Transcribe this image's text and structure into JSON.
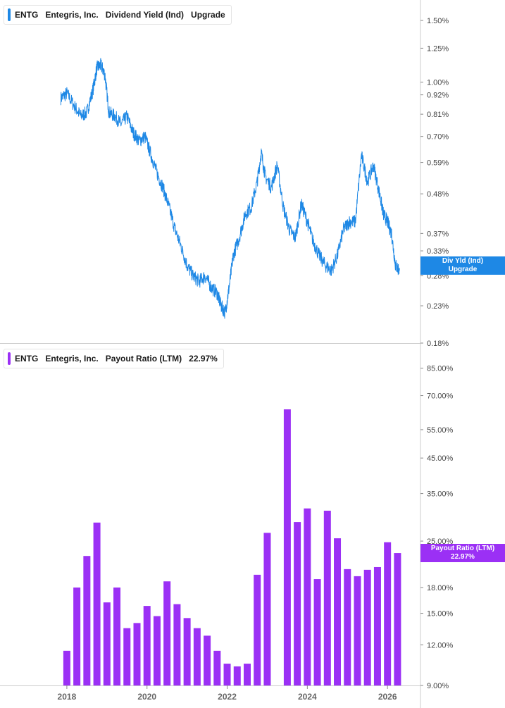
{
  "colors": {
    "yield": "#1e88e5",
    "payout": "#9b30f5",
    "axis_text": "#444444",
    "grid": "#cccccc"
  },
  "top_legend": {
    "ticker": "ENTG",
    "company": "Entegris, Inc.",
    "metric": "Dividend Yield (Ind)",
    "value": "Upgrade"
  },
  "bottom_legend": {
    "ticker": "ENTG",
    "company": "Entegris, Inc.",
    "metric": "Payout Ratio (LTM)",
    "value": "22.97%"
  },
  "top_tag": {
    "line1": "Div Yld (Ind)",
    "line2": "Upgrade"
  },
  "bottom_tag": {
    "line1": "Payout Ratio (LTM)",
    "line2": "22.97%"
  },
  "chart_data": [
    {
      "type": "line",
      "series": [
        {
          "name": "Dividend Yield (Ind)"
        }
      ],
      "y_scale": "log",
      "ylim": [
        0.18,
        1.7
      ],
      "y_ticks": [
        "1.50%",
        "1.25%",
        "1.00%",
        "0.92%",
        "0.81%",
        "0.70%",
        "0.59%",
        "0.48%",
        "0.37%",
        "0.33%",
        "0.28%",
        "0.23%",
        "0.18%"
      ],
      "x": [
        2017.85,
        2018.0,
        2018.2,
        2018.35,
        2018.5,
        2018.65,
        2018.75,
        2018.85,
        2018.95,
        2019.05,
        2019.2,
        2019.35,
        2019.5,
        2019.65,
        2019.8,
        2019.95,
        2020.1,
        2020.25,
        2020.4,
        2020.55,
        2020.7,
        2020.85,
        2021.0,
        2021.15,
        2021.3,
        2021.45,
        2021.6,
        2021.75,
        2021.85,
        2021.95,
        2022.05,
        2022.15,
        2022.3,
        2022.45,
        2022.6,
        2022.75,
        2022.85,
        2022.95,
        2023.1,
        2023.25,
        2023.4,
        2023.55,
        2023.7,
        2023.85,
        2024.0,
        2024.15,
        2024.3,
        2024.45,
        2024.6,
        2024.75,
        2024.9,
        2025.05,
        2025.2,
        2025.35,
        2025.5,
        2025.65,
        2025.8,
        2025.9,
        2026.0,
        2026.1,
        2026.2,
        2026.3
      ],
      "y": [
        0.9,
        0.93,
        0.85,
        0.8,
        0.82,
        0.95,
        1.1,
        1.12,
        1.05,
        0.82,
        0.8,
        0.76,
        0.8,
        0.72,
        0.68,
        0.7,
        0.62,
        0.55,
        0.5,
        0.44,
        0.38,
        0.34,
        0.3,
        0.28,
        0.27,
        0.28,
        0.26,
        0.25,
        0.23,
        0.22,
        0.26,
        0.32,
        0.36,
        0.42,
        0.44,
        0.52,
        0.63,
        0.54,
        0.5,
        0.58,
        0.44,
        0.38,
        0.36,
        0.45,
        0.4,
        0.35,
        0.32,
        0.3,
        0.29,
        0.32,
        0.38,
        0.4,
        0.4,
        0.62,
        0.52,
        0.58,
        0.48,
        0.42,
        0.4,
        0.37,
        0.3,
        0.29
      ]
    },
    {
      "type": "bar",
      "series": [
        {
          "name": "Payout Ratio (LTM)"
        }
      ],
      "y_scale": "log",
      "ylim": [
        9.0,
        100.0
      ],
      "y_ticks": [
        "85.00%",
        "70.00%",
        "55.00%",
        "45.00%",
        "35.00%",
        "25.00%",
        "18.00%",
        "15.00%",
        "12.00%",
        "9.00%"
      ],
      "x_ticks": [
        "2018",
        "2020",
        "2022",
        "2024",
        "2026"
      ],
      "x": [
        2018.0,
        2018.25,
        2018.5,
        2018.75,
        2019.0,
        2019.25,
        2019.5,
        2019.75,
        2020.0,
        2020.25,
        2020.5,
        2020.75,
        2021.0,
        2021.25,
        2021.5,
        2021.75,
        2022.0,
        2022.25,
        2022.5,
        2022.75,
        2023.0,
        2023.5,
        2023.75,
        2024.0,
        2024.25,
        2024.5,
        2024.75,
        2025.0,
        2025.25,
        2025.5,
        2025.75,
        2026.0,
        2026.25
      ],
      "values": [
        11.5,
        18.0,
        22.5,
        28.5,
        16.2,
        18.0,
        13.5,
        14.0,
        15.8,
        14.7,
        18.8,
        16.0,
        14.5,
        13.5,
        12.8,
        11.5,
        10.5,
        10.3,
        10.5,
        19.7,
        26.5,
        63.5,
        28.6,
        31.5,
        19.1,
        31.0,
        25.5,
        20.5,
        19.5,
        20.4,
        20.8,
        24.8,
        22.97
      ]
    }
  ]
}
